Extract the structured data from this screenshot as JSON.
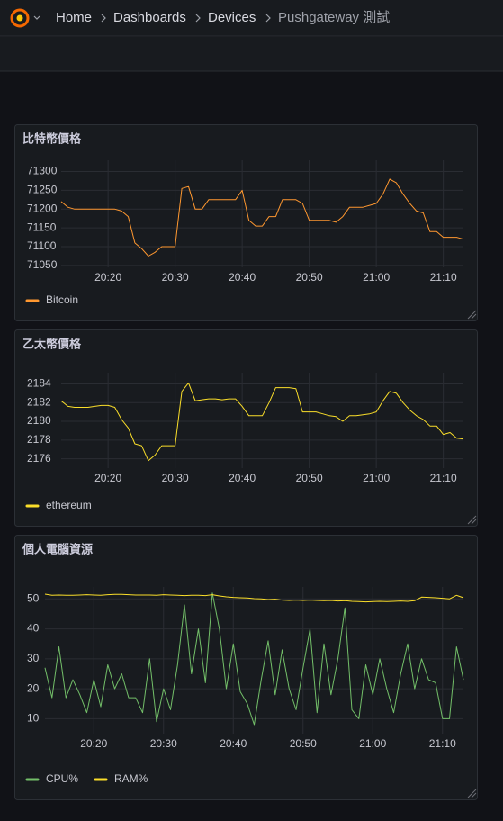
{
  "breadcrumb": [
    "Home",
    "Dashboards",
    "Devices",
    "Pushgateway 測試"
  ],
  "chart_data": [
    {
      "type": "line",
      "title": "比特幣價格",
      "x": [
        1213,
        1214,
        1215,
        1216,
        1217,
        1218,
        1219,
        1220,
        1221,
        1222,
        1223,
        1224,
        1225,
        1226,
        1227,
        1228,
        1229,
        1230,
        1231,
        1232,
        1233,
        1234,
        1235,
        1236,
        1237,
        1238,
        1239,
        1240,
        1241,
        1242,
        1243,
        1244,
        1245,
        1246,
        1247,
        1248,
        1249,
        1250,
        1251,
        1252,
        1253,
        1254,
        1255,
        1256,
        1257,
        1258,
        1259,
        1260,
        1261,
        1262,
        1263,
        1264,
        1265,
        1266,
        1267,
        1268,
        1269,
        1270,
        1271,
        1272,
        1273
      ],
      "series": [
        {
          "name": "Bitcoin",
          "color": "#FF9830",
          "values": [
            71220,
            71205,
            71200,
            71200,
            71200,
            71200,
            71200,
            71200,
            71200,
            71195,
            71180,
            71110,
            71095,
            71075,
            71085,
            71100,
            71100,
            71100,
            71255,
            71260,
            71200,
            71200,
            71225,
            71225,
            71225,
            71225,
            71225,
            71250,
            71170,
            71155,
            71155,
            71180,
            71180,
            71225,
            71225,
            71225,
            71215,
            71170,
            71170,
            71170,
            71170,
            71165,
            71180,
            71205,
            71205,
            71205,
            71210,
            71215,
            71240,
            71280,
            71270,
            71240,
            71215,
            71195,
            71190,
            71140,
            71140,
            71125,
            71125,
            71125,
            71120
          ]
        }
      ],
      "xlim": [
        1213,
        1273
      ],
      "xticks": [
        {
          "value": 1220,
          "label": "20:20"
        },
        {
          "value": 1230,
          "label": "20:30"
        },
        {
          "value": 1240,
          "label": "20:40"
        },
        {
          "value": 1250,
          "label": "20:50"
        },
        {
          "value": 1260,
          "label": "21:00"
        },
        {
          "value": 1270,
          "label": "21:10"
        }
      ],
      "ylim": [
        71045,
        71330
      ],
      "yticks": [
        71050,
        71100,
        71150,
        71200,
        71250,
        71300
      ],
      "grid": true,
      "legend": "bottom-left"
    },
    {
      "type": "line",
      "title": "乙太幣價格",
      "x": [
        1213,
        1214,
        1215,
        1216,
        1217,
        1218,
        1219,
        1220,
        1221,
        1222,
        1223,
        1224,
        1225,
        1226,
        1227,
        1228,
        1229,
        1230,
        1231,
        1232,
        1233,
        1234,
        1235,
        1236,
        1237,
        1238,
        1239,
        1240,
        1241,
        1242,
        1243,
        1244,
        1245,
        1246,
        1247,
        1248,
        1249,
        1250,
        1251,
        1252,
        1253,
        1254,
        1255,
        1256,
        1257,
        1258,
        1259,
        1260,
        1261,
        1262,
        1263,
        1264,
        1265,
        1266,
        1267,
        1268,
        1269,
        1270,
        1271,
        1272,
        1273
      ],
      "series": [
        {
          "name": "ethereum",
          "color": "#FADE2A",
          "values": [
            2182.2,
            2181.6,
            2181.5,
            2181.5,
            2181.5,
            2181.6,
            2181.7,
            2181.7,
            2181.5,
            2180.2,
            2179.3,
            2177.6,
            2177.4,
            2175.8,
            2176.4,
            2177.4,
            2177.4,
            2177.4,
            2183.2,
            2184.1,
            2182.2,
            2182.3,
            2182.4,
            2182.4,
            2182.3,
            2182.4,
            2182.4,
            2181.6,
            2180.6,
            2180.6,
            2180.6,
            2182.0,
            2183.6,
            2183.6,
            2183.6,
            2183.5,
            2181.0,
            2181.0,
            2181.0,
            2180.8,
            2180.6,
            2180.5,
            2180.0,
            2180.6,
            2180.6,
            2180.7,
            2180.8,
            2181.0,
            2182.2,
            2183.2,
            2183.0,
            2182.0,
            2181.2,
            2180.6,
            2180.2,
            2179.5,
            2179.5,
            2178.6,
            2178.8,
            2178.2,
            2178.1
          ]
        }
      ],
      "xlim": [
        1213,
        1273
      ],
      "xticks": [
        {
          "value": 1220,
          "label": "20:20"
        },
        {
          "value": 1230,
          "label": "20:30"
        },
        {
          "value": 1240,
          "label": "20:40"
        },
        {
          "value": 1250,
          "label": "20:50"
        },
        {
          "value": 1260,
          "label": "21:00"
        },
        {
          "value": 1270,
          "label": "21:10"
        }
      ],
      "ylim": [
        2175,
        2185.2
      ],
      "yticks": [
        2176,
        2178,
        2180,
        2182,
        2184
      ],
      "grid": true,
      "legend": "bottom-left"
    },
    {
      "type": "line",
      "title": "個人電腦資源",
      "x": [
        1213,
        1214,
        1215,
        1216,
        1217,
        1218,
        1219,
        1220,
        1221,
        1222,
        1223,
        1224,
        1225,
        1226,
        1227,
        1228,
        1229,
        1230,
        1231,
        1232,
        1233,
        1234,
        1235,
        1236,
        1237,
        1238,
        1239,
        1240,
        1241,
        1242,
        1243,
        1244,
        1245,
        1246,
        1247,
        1248,
        1249,
        1250,
        1251,
        1252,
        1253,
        1254,
        1255,
        1256,
        1257,
        1258,
        1259,
        1260,
        1261,
        1262,
        1263,
        1264,
        1265,
        1266,
        1267,
        1268,
        1269,
        1270,
        1271,
        1272,
        1273
      ],
      "series": [
        {
          "name": "CPU%",
          "color": "#73BF69",
          "values": [
            27,
            17,
            34,
            17,
            23,
            18,
            12,
            23,
            14,
            28,
            20,
            25,
            17,
            17,
            12,
            30,
            9,
            20,
            13,
            28,
            48,
            25,
            40,
            22,
            52,
            40,
            20,
            35,
            19,
            15,
            8,
            23,
            36,
            18,
            33,
            20,
            13,
            27,
            40,
            12,
            35,
            18,
            30,
            47,
            13,
            10,
            28,
            18,
            30,
            20,
            12,
            25,
            35,
            20,
            30,
            23,
            22,
            10,
            10,
            34,
            23
          ]
        },
        {
          "name": "RAM%",
          "color": "#FADE2A",
          "values": [
            51.6,
            51.2,
            51.3,
            51.2,
            51.2,
            51.3,
            51.4,
            51.3,
            51.2,
            51.4,
            51.5,
            51.5,
            51.4,
            51.3,
            51.3,
            51.3,
            51.2,
            51.4,
            51.3,
            51.2,
            51.1,
            51.2,
            51.2,
            51.1,
            51.4,
            51.0,
            50.7,
            50.5,
            50.4,
            50.3,
            50.1,
            50.0,
            49.8,
            49.9,
            49.6,
            49.5,
            49.6,
            49.5,
            49.6,
            49.5,
            49.4,
            49.5,
            49.3,
            49.4,
            49.2,
            49.1,
            49.0,
            49.1,
            49.2,
            49.1,
            49.2,
            49.3,
            49.2,
            49.4,
            50.6,
            50.5,
            50.4,
            50.2,
            50.0,
            51.2,
            50.4
          ]
        }
      ],
      "xlim": [
        1213,
        1273
      ],
      "xticks": [
        {
          "value": 1220,
          "label": "20:20"
        },
        {
          "value": 1230,
          "label": "20:30"
        },
        {
          "value": 1240,
          "label": "20:40"
        },
        {
          "value": 1250,
          "label": "20:50"
        },
        {
          "value": 1260,
          "label": "21:00"
        },
        {
          "value": 1270,
          "label": "21:10"
        }
      ],
      "ylim": [
        5,
        54
      ],
      "yticks": [
        10,
        20,
        30,
        40,
        50
      ],
      "grid": true,
      "legend": "bottom-left"
    }
  ]
}
